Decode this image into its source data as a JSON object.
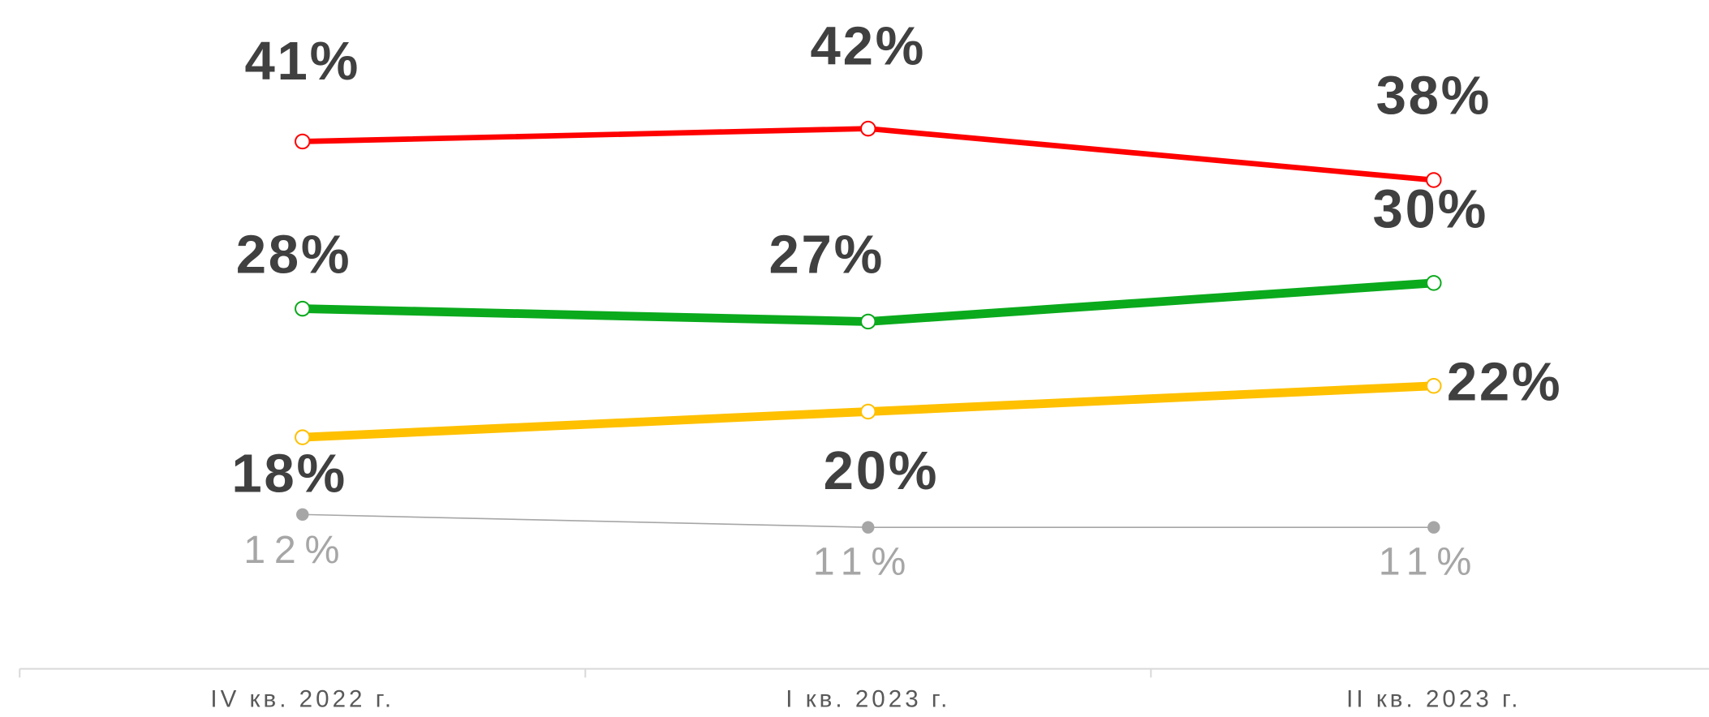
{
  "chart_data": {
    "type": "line",
    "categories": [
      "IV  кв. 2022 г.",
      "I кв. 2023 г.",
      "II кв. 2023 г."
    ],
    "ylim": [
      0,
      52
    ],
    "series": [
      {
        "color": "#ff0000",
        "values": [
          41,
          42,
          38
        ],
        "value_labels": [
          "41%",
          "42%",
          "38%"
        ]
      },
      {
        "color": "#0aaa1c",
        "values": [
          28,
          27,
          30
        ],
        "value_labels": [
          "28%",
          "27%",
          "30%"
        ]
      },
      {
        "color": "#ffc000",
        "values": [
          18,
          20,
          22
        ],
        "value_labels": [
          "18%",
          "20%",
          "22%"
        ]
      },
      {
        "color": "#a6a6a6",
        "values": [
          12,
          11,
          11
        ],
        "value_labels": [
          "12%",
          "11%",
          "11%"
        ]
      }
    ]
  }
}
